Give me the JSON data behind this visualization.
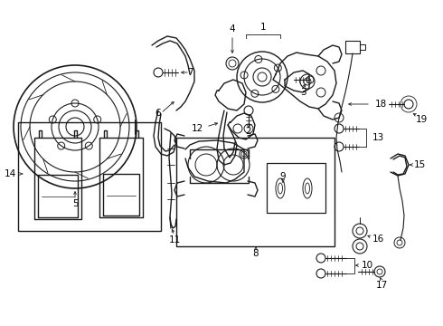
{
  "background_color": "#ffffff",
  "line_color": "#1a1a1a",
  "label_color": "#000000",
  "figsize": [
    4.9,
    3.6
  ],
  "dpi": 100,
  "xlim": [
    0,
    490
  ],
  "ylim": [
    0,
    360
  ]
}
